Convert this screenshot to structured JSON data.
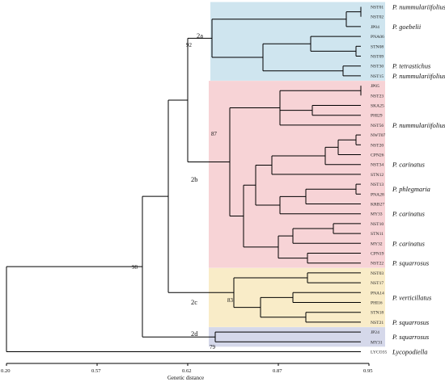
{
  "colors": {
    "cluster_2a": "#cfe5ef",
    "cluster_2b": "#f7d3d6",
    "cluster_2c": "#f9ecc8",
    "cluster_2d": "#d5d8ea",
    "branch": "#000000"
  },
  "leaves": [
    "NST01",
    "NST02",
    "JP04",
    "PNA06",
    "STN08",
    "NST09",
    "NST30",
    "NST15",
    "JP05",
    "NST23",
    "SKA25",
    "PHI29",
    "NST56",
    "NWT07",
    "NST20",
    "CPN26",
    "NST34",
    "STN12",
    "NST13",
    "PNA28",
    "KRB27",
    "MY33",
    "NST10",
    "STN11",
    "MY32",
    "CPN19",
    "NST22",
    "NST03",
    "NST17",
    "PNA14",
    "PHI16",
    "STN18",
    "NST21",
    "JP24",
    "MY31",
    "LYCO35"
  ],
  "species_labels": [
    {
      "text": "P. nummulariifolius",
      "row": 0
    },
    {
      "text": "P. goebelii",
      "row": 2
    },
    {
      "text": "P. tetrastichus",
      "row": 6
    },
    {
      "text": "P. nummulariifolius",
      "row": 7
    },
    {
      "text": "P. nummulariifolius",
      "row": 12
    },
    {
      "text": "P. carinatus",
      "row": 16
    },
    {
      "text": "P. phlegmaria",
      "row": 18.5
    },
    {
      "text": "P. carinatus",
      "row": 21
    },
    {
      "text": "P. carinatus",
      "row": 24
    },
    {
      "text": "P. squarrosus",
      "row": 26
    },
    {
      "text": "P. verticillatus",
      "row": 29.5
    },
    {
      "text": "P. squarrosus",
      "row": 32
    },
    {
      "text": "P. squarrosus",
      "row": 33.5
    },
    {
      "text": "Lycopodiella",
      "row": 35
    }
  ],
  "clusters": [
    {
      "name": "2a",
      "first_row": 0,
      "last_row": 7,
      "color_key": "cluster_2a"
    },
    {
      "name": "2b",
      "first_row": 8,
      "last_row": 26,
      "color_key": "cluster_2b"
    },
    {
      "name": "2c",
      "first_row": 27,
      "last_row": 32,
      "color_key": "cluster_2c"
    },
    {
      "name": "2d",
      "first_row": 33,
      "last_row": 34,
      "color_key": "cluster_2d"
    }
  ],
  "bootstrap": [
    "92",
    "87",
    "83",
    "79",
    "98"
  ],
  "axis": {
    "ticks": [
      "0.20",
      "0.57",
      "0.62",
      "0.87",
      "0.95"
    ],
    "title": "Genetic distance"
  }
}
